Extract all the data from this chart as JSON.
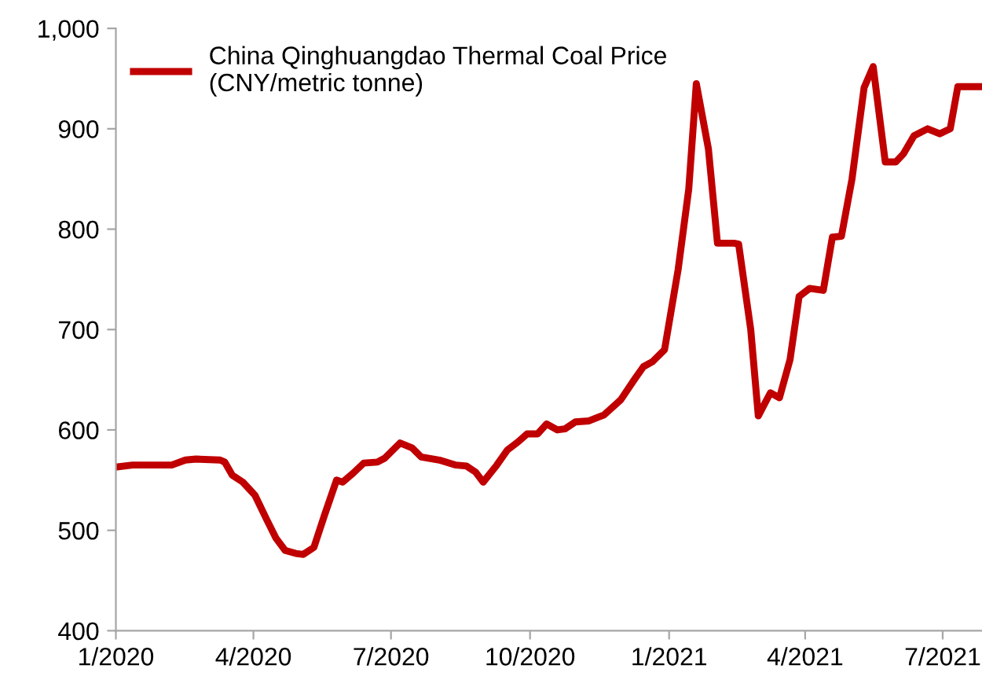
{
  "chart_data": {
    "type": "line",
    "legend": "top left",
    "grid": false,
    "marker": "none",
    "line_style": "solid",
    "x": [
      "2020-01-01",
      "2020-01-12",
      "2020-02-07",
      "2020-02-16",
      "2020-02-23",
      "2020-03-10",
      "2020-03-13",
      "2020-03-18",
      "2020-03-25",
      "2020-04-02",
      "2020-04-10",
      "2020-04-16",
      "2020-04-22",
      "2020-04-29",
      "2020-05-04",
      "2020-05-11",
      "2020-05-18",
      "2020-05-26",
      "2020-05-30",
      "2020-06-06",
      "2020-06-13",
      "2020-06-22",
      "2020-06-27",
      "2020-07-07",
      "2020-07-15",
      "2020-07-21",
      "2020-08-02",
      "2020-08-13",
      "2020-08-20",
      "2020-08-26",
      "2020-08-31",
      "2020-09-09",
      "2020-09-16",
      "2020-09-23",
      "2020-09-29",
      "2020-10-06",
      "2020-10-12",
      "2020-10-19",
      "2020-10-24",
      "2020-10-31",
      "2020-11-09",
      "2020-11-19",
      "2020-11-30",
      "2020-12-08",
      "2020-12-15",
      "2020-12-21",
      "2020-12-29",
      "2021-01-07",
      "2021-01-14",
      "2021-01-19",
      "2021-01-27",
      "2021-02-02",
      "2021-02-13",
      "2021-02-16",
      "2021-02-24",
      "2021-03-01",
      "2021-03-09",
      "2021-03-15",
      "2021-03-22",
      "2021-03-28",
      "2021-04-04",
      "2021-04-13",
      "2021-04-19",
      "2021-04-25",
      "2021-05-02",
      "2021-05-10",
      "2021-05-16",
      "2021-05-24",
      "2021-05-31",
      "2021-06-05",
      "2021-06-12",
      "2021-06-21",
      "2021-06-29",
      "2021-07-06",
      "2021-07-11",
      "2021-07-27"
    ],
    "series": [
      {
        "name": "China Qinghuangdao Thermal Coal Price\n(CNY/metric tonne)",
        "color": "#c00000",
        "values": [
          563,
          565,
          565,
          570,
          571,
          570,
          568,
          555,
          548,
          535,
          510,
          492,
          480,
          477,
          476,
          483,
          515,
          550,
          548,
          557,
          567,
          568,
          572,
          587,
          582,
          573,
          570,
          565,
          564,
          558,
          548,
          565,
          580,
          588,
          596,
          596,
          606,
          600,
          601,
          608,
          609,
          615,
          630,
          648,
          663,
          668,
          680,
          760,
          840,
          945,
          880,
          786,
          786,
          785,
          700,
          614,
          637,
          632,
          670,
          733,
          741,
          739,
          792,
          793,
          850,
          941,
          962,
          867,
          867,
          875,
          893,
          900,
          895,
          900,
          942,
          942
        ]
      }
    ],
    "xlim": [
      "2020-01-01",
      "2021-07-27"
    ],
    "xticks": [
      {
        "value": "2020-01-01",
        "label": "1/2020"
      },
      {
        "value": "2020-04-01",
        "label": "4/2020"
      },
      {
        "value": "2020-07-01",
        "label": "7/2020"
      },
      {
        "value": "2020-10-01",
        "label": "10/2020"
      },
      {
        "value": "2021-01-01",
        "label": "1/2021"
      },
      {
        "value": "2021-04-01",
        "label": "4/2021"
      },
      {
        "value": "2021-07-01",
        "label": "7/2021"
      }
    ],
    "ylim": [
      400,
      1000
    ],
    "yticks": [
      400,
      500,
      600,
      700,
      800,
      900,
      {
        "value": 1000,
        "label": "1,000"
      }
    ]
  }
}
